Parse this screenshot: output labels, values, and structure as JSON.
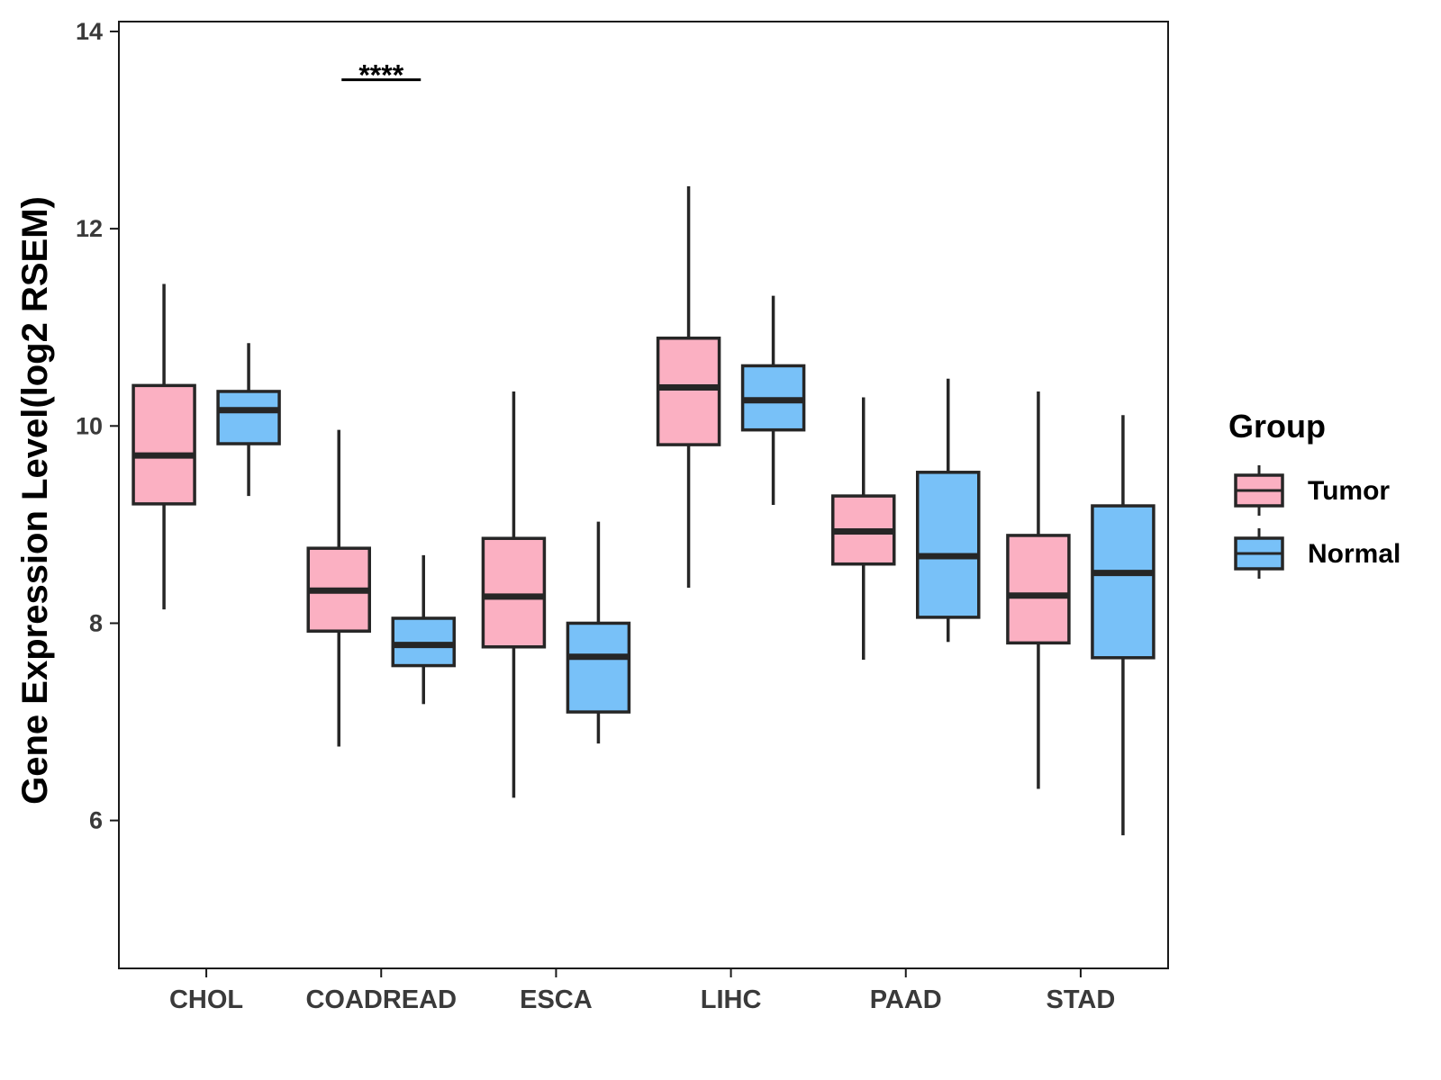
{
  "chart_data": {
    "type": "boxplot",
    "title": "",
    "xlabel": "",
    "ylabel": "Gene Expression Level(log2 RSEM)",
    "ylim": [
      4.5,
      14.1
    ],
    "yticks": [
      6,
      8,
      10,
      12,
      14
    ],
    "categories": [
      "CHOL",
      "COADREAD",
      "ESCA",
      "LIHC",
      "PAAD",
      "STAD"
    ],
    "legend": {
      "title": "Group",
      "position": "right",
      "entries": [
        "Tumor",
        "Normal"
      ]
    },
    "series": [
      {
        "name": "Tumor",
        "color": "#FBB0C2",
        "boxes": [
          {
            "whisker_low": 8.14,
            "q1": 9.21,
            "median": 9.7,
            "q3": 10.41,
            "whisker_high": 11.44
          },
          {
            "whisker_low": 6.75,
            "q1": 7.92,
            "median": 8.33,
            "q3": 8.76,
            "whisker_high": 9.96
          },
          {
            "whisker_low": 6.23,
            "q1": 7.76,
            "median": 8.27,
            "q3": 8.86,
            "whisker_high": 10.35
          },
          {
            "whisker_low": 8.36,
            "q1": 9.81,
            "median": 10.39,
            "q3": 10.89,
            "whisker_high": 12.43
          },
          {
            "whisker_low": 7.63,
            "q1": 8.6,
            "median": 8.93,
            "q3": 9.29,
            "whisker_high": 10.29
          },
          {
            "whisker_low": 6.32,
            "q1": 7.8,
            "median": 8.28,
            "q3": 8.89,
            "whisker_high": 10.35
          }
        ]
      },
      {
        "name": "Normal",
        "color": "#78C1F8",
        "boxes": [
          {
            "whisker_low": 9.29,
            "q1": 9.82,
            "median": 10.16,
            "q3": 10.35,
            "whisker_high": 10.84
          },
          {
            "whisker_low": 7.18,
            "q1": 7.57,
            "median": 7.78,
            "q3": 8.05,
            "whisker_high": 8.69
          },
          {
            "whisker_low": 6.78,
            "q1": 7.1,
            "median": 7.66,
            "q3": 8.0,
            "whisker_high": 9.03
          },
          {
            "whisker_low": 9.2,
            "q1": 9.96,
            "median": 10.26,
            "q3": 10.61,
            "whisker_high": 11.32
          },
          {
            "whisker_low": 7.81,
            "q1": 8.06,
            "median": 8.68,
            "q3": 9.53,
            "whisker_high": 10.48
          },
          {
            "whisker_low": 5.85,
            "q1": 7.65,
            "median": 8.51,
            "q3": 9.19,
            "whisker_high": 10.11
          }
        ]
      }
    ],
    "annotations": [
      {
        "text": "****",
        "category": "COADREAD",
        "y": 13.62
      }
    ]
  }
}
